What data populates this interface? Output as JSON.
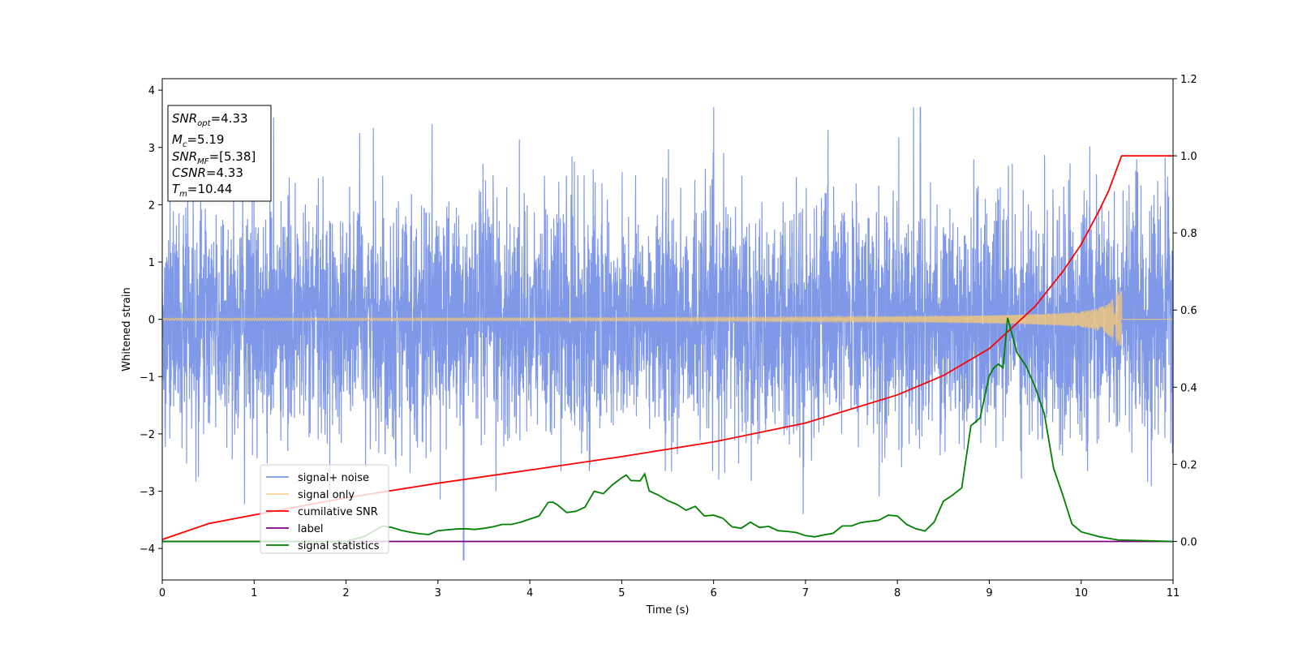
{
  "chart_data": {
    "type": "line",
    "xlabel": "Time (s)",
    "ylabel": "Whitened strain",
    "xlim": [
      0,
      11
    ],
    "ylim_left": [
      -4.55,
      4.2
    ],
    "ylim_right": [
      -0.1,
      1.2
    ],
    "x_ticks": [
      "0",
      "1",
      "2",
      "3",
      "4",
      "5",
      "6",
      "7",
      "8",
      "9",
      "10",
      "11"
    ],
    "y_left_ticks": [
      "−4",
      "−3",
      "−2",
      "−1",
      "0",
      "1",
      "2",
      "3",
      "4"
    ],
    "y_right_ticks": [
      "0.0",
      "0.2",
      "0.4",
      "0.6",
      "0.8",
      "1.0",
      "1.2"
    ],
    "grid": false,
    "legend_position": "lower-left",
    "info_box": {
      "snr_opt": {
        "label": "SNR",
        "sub": "opt",
        "value": "=4.33"
      },
      "mc": {
        "label": "M",
        "sub": "c",
        "value": "=5.19"
      },
      "snr_mf": {
        "label": "SNR",
        "sub": "MF",
        "value": "=[5.38]"
      },
      "csnr": {
        "label": "CSNR",
        "sub": "",
        "value": "=4.33"
      },
      "tm": {
        "label": "T",
        "sub": "m",
        "value": "=10.44"
      }
    },
    "series": [
      {
        "name": "signal+ noise",
        "color": "#7892e6",
        "axis": "left",
        "description": "white noise, approx. N(0,1), min ≈ -4.2 near t=3.3, max ≈ 3.7 near t=8.25"
      },
      {
        "name": "signal only",
        "color": "#f5c878",
        "axis": "left",
        "chirp_end_time": 10.44,
        "chirp_peak_amplitude": 0.48
      },
      {
        "name": "cumilative SNR",
        "color": "#ff0000",
        "axis": "right",
        "x": [
          0,
          0.5,
          1,
          2,
          3,
          4,
          5,
          6,
          7,
          8,
          8.5,
          9,
          9.5,
          9.8,
          10,
          10.2,
          10.3,
          10.44,
          11
        ],
        "y": [
          0.005,
          0.046,
          0.069,
          0.113,
          0.151,
          0.185,
          0.22,
          0.258,
          0.307,
          0.38,
          0.43,
          0.5,
          0.61,
          0.7,
          0.77,
          0.86,
          0.91,
          1.0,
          1.0
        ]
      },
      {
        "name": "label",
        "color": "#800080",
        "axis": "right",
        "x": [
          0,
          11
        ],
        "y": [
          0,
          0
        ]
      },
      {
        "name": "signal statistics",
        "color": "#008000",
        "axis": "right",
        "x": [
          0,
          1,
          2,
          2.2,
          2.3,
          2.4,
          2.5,
          2.6,
          2.7,
          2.8,
          2.9,
          3.0,
          3.1,
          3.2,
          3.3,
          3.4,
          3.5,
          3.6,
          3.7,
          3.8,
          3.9,
          4.0,
          4.1,
          4.2,
          4.25,
          4.3,
          4.4,
          4.5,
          4.6,
          4.7,
          4.8,
          4.9,
          5.0,
          5.05,
          5.1,
          5.2,
          5.25,
          5.3,
          5.4,
          5.5,
          5.6,
          5.7,
          5.8,
          5.9,
          6.0,
          6.1,
          6.2,
          6.3,
          6.4,
          6.5,
          6.6,
          6.7,
          6.8,
          6.9,
          7.0,
          7.1,
          7.2,
          7.3,
          7.4,
          7.5,
          7.6,
          7.7,
          7.8,
          7.9,
          8.0,
          8.1,
          8.2,
          8.3,
          8.4,
          8.5,
          8.6,
          8.7,
          8.8,
          8.9,
          9.0,
          9.05,
          9.1,
          9.15,
          9.2,
          9.3,
          9.4,
          9.5,
          9.6,
          9.7,
          9.8,
          9.9,
          10.0,
          10.2,
          10.4,
          11
        ],
        "y": [
          0.0,
          0.0,
          0.0,
          0.013,
          0.027,
          0.04,
          0.036,
          0.029,
          0.024,
          0.02,
          0.018,
          0.028,
          0.03,
          0.032,
          0.033,
          0.031,
          0.034,
          0.038,
          0.044,
          0.044,
          0.05,
          0.058,
          0.066,
          0.101,
          0.102,
          0.095,
          0.075,
          0.078,
          0.089,
          0.13,
          0.124,
          0.147,
          0.165,
          0.172,
          0.158,
          0.157,
          0.175,
          0.131,
          0.12,
          0.106,
          0.096,
          0.081,
          0.091,
          0.066,
          0.068,
          0.06,
          0.038,
          0.034,
          0.05,
          0.036,
          0.039,
          0.028,
          0.026,
          0.023,
          0.015,
          0.012,
          0.017,
          0.021,
          0.04,
          0.04,
          0.049,
          0.052,
          0.055,
          0.068,
          0.066,
          0.044,
          0.033,
          0.027,
          0.05,
          0.104,
          0.12,
          0.139,
          0.3,
          0.32,
          0.43,
          0.45,
          0.46,
          0.45,
          0.58,
          0.49,
          0.455,
          0.4,
          0.33,
          0.19,
          0.12,
          0.045,
          0.025,
          0.012,
          0.004,
          0.0
        ]
      }
    ]
  }
}
